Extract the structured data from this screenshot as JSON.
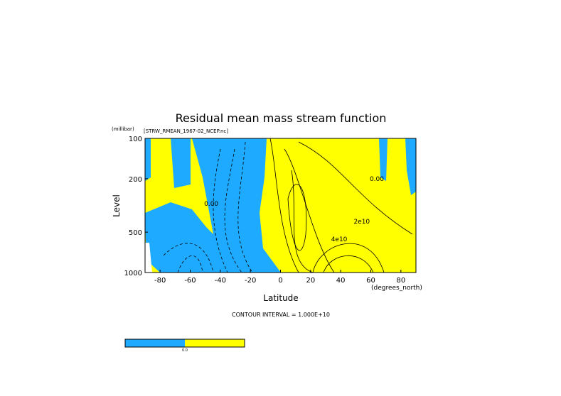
{
  "chart_data": {
    "type": "contour",
    "title": "Residual mean mass stream function",
    "subtitle": "[STRW_RMEAN_1967-02_NCEP.nc]",
    "x_label": "Latitude",
    "x_units": "(degrees_north)",
    "y_label": "Level",
    "y_units": "(millibar)",
    "xlim": [
      -90,
      90
    ],
    "xticks": [
      -80,
      -60,
      -40,
      -20,
      0,
      20,
      40,
      60,
      80
    ],
    "ylim": [
      1000,
      100
    ],
    "yticks": [
      100,
      200,
      500,
      1000
    ],
    "y_log": true,
    "negative_color": "#1eaaff",
    "positive_color": "#ffff00",
    "annotations": [
      {
        "text": "2e10",
        "x": 54,
        "y": 431
      },
      {
        "text": "4e10",
        "x": 39,
        "y": 585
      },
      {
        "text": "0.00",
        "x": -46,
        "y": 318
      },
      {
        "text": "0.00",
        "x": 64,
        "y": 208
      }
    ],
    "footnote": "CONTOUR INTERVAL = 1.000E+10",
    "colorbar_label": "0.0"
  }
}
